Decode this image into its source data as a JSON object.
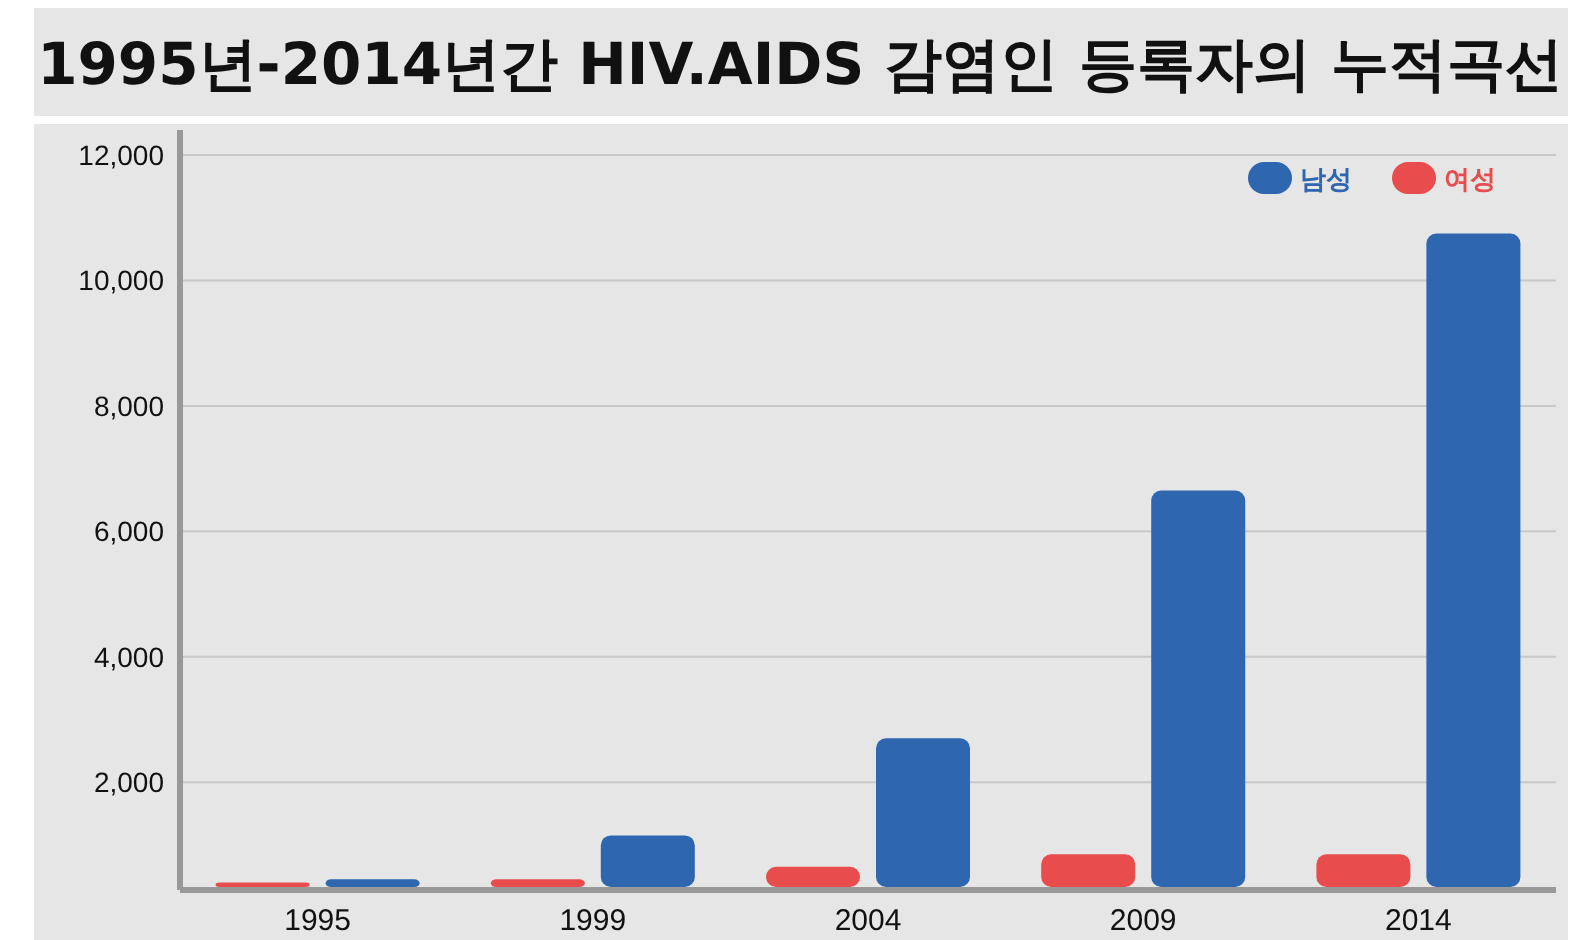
{
  "chart_data": {
    "type": "bar",
    "title": "1995년-2014년간 HIV.AIDS 감염인 등록자의 누적곡선",
    "categories": [
      "1995",
      "1999",
      "2004",
      "2009",
      "2014"
    ],
    "series": [
      {
        "name": "남성",
        "color": "#2e67b0",
        "values": [
          450,
          1150,
          2700,
          6650,
          10750
        ]
      },
      {
        "name": "여성",
        "color": "#e84c4c",
        "values": [
          400,
          450,
          650,
          850,
          850
        ]
      }
    ],
    "ylim": [
      280,
      12400
    ],
    "yticks": [
      {
        "value": 2000,
        "label": "2,000"
      },
      {
        "value": 4000,
        "label": "4,000"
      },
      {
        "value": 6000,
        "label": "6,000"
      },
      {
        "value": 8000,
        "label": "8,000"
      },
      {
        "value": 10000,
        "label": "10,000"
      },
      {
        "value": 12000,
        "label": "12,000"
      }
    ],
    "grid": "y",
    "legend": "top right"
  }
}
